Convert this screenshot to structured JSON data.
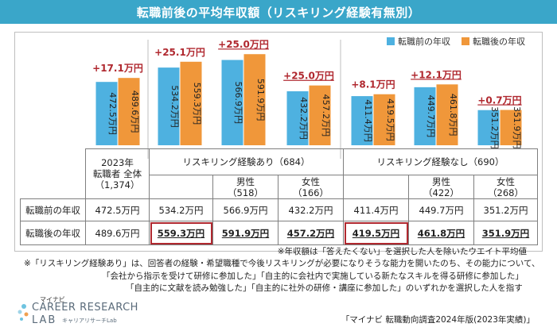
{
  "title": "転職前後の平均年収額（リスキリング経験有無別）",
  "colors": {
    "title_bg": "#3aa6c9",
    "before": "#4eb1e0",
    "after": "#f0973a",
    "diff": "#b0282f",
    "highlight": "#b0282f"
  },
  "chart_data": {
    "type": "bar",
    "title": "転職前後の平均年収額（リスキリング経験有無別）",
    "unit": "万円",
    "categories": [
      "2023年 転職者 全体",
      "リスキリング経験あり 全体",
      "リスキリング経験あり 男性",
      "リスキリング経験あり 女性",
      "リスキリング経験なし 全体",
      "リスキリング経験なし 男性",
      "リスキリング経験なし 女性"
    ],
    "series": [
      {
        "name": "転職前の年収",
        "color": "#4eb1e0",
        "values": [
          472.5,
          534.2,
          566.9,
          432.2,
          411.4,
          449.7,
          351.2
        ]
      },
      {
        "name": "転職後の年収",
        "color": "#f0973a",
        "values": [
          489.6,
          559.3,
          591.9,
          457.2,
          419.5,
          461.8,
          351.9
        ]
      }
    ],
    "bar_labels_before": [
      "472.5万円",
      "534.2万円",
      "566.9万円",
      "432.2万円",
      "411.4万円",
      "449.7万円",
      "351.2万円"
    ],
    "bar_labels_after": [
      "489.6万円",
      "559.3万円",
      "591.9万円",
      "457.2万円",
      "419.5万円",
      "461.8万円",
      "351.9万円"
    ],
    "diff_labels": [
      "+17.1万円",
      "+25.1万円",
      "+25.0万円",
      "+25.0万円",
      "+8.1万円",
      "+12.1万円",
      "+0.7万円"
    ],
    "diff_underlined": [
      false,
      false,
      true,
      true,
      false,
      true,
      true
    ],
    "ylim": [
      200,
      620
    ],
    "grid": false,
    "legend_position": "top-right"
  },
  "legend": {
    "before": "転職前の年収",
    "after": "転職後の年収"
  },
  "table": {
    "overall": {
      "line1": "2023年",
      "line2": "転職者 全体",
      "line3": "（1,374）"
    },
    "group_with": "リスキリング経験あり（684）",
    "group_without": "リスキリング経験なし（690）",
    "male_with": {
      "label": "男性",
      "n": "（518）"
    },
    "female_with": {
      "label": "女性",
      "n": "（166）"
    },
    "male_without": {
      "label": "男性",
      "n": "（422）"
    },
    "female_without": {
      "label": "女性",
      "n": "（268）"
    },
    "row_before": {
      "label": "転職前の年収",
      "values": [
        "472.5万円",
        "534.2万円",
        "566.9万円",
        "432.2万円",
        "411.4万円",
        "449.7万円",
        "351.2万円"
      ]
    },
    "row_after": {
      "label": "転職後の年収",
      "values": [
        "489.6万円",
        "559.3万円",
        "591.9万円",
        "457.2万円",
        "419.5万円",
        "461.8万円",
        "351.9万円"
      ]
    }
  },
  "notes": {
    "n1": "※年収額は「答えたくない」を選択した人を除いたウエイト平均値",
    "n2": "※「リスキリング経験あり」は、回答者の経験・希望職種で今後リスキリングが必要になりそうな能力を開いたのち、その能力について、",
    "n3": "「会社から指示を受けて研修に参加した」「自主的に会社内で実施している新たなスキルを得る研修に参加した」",
    "n4": "「自主的に文献を読み勉強した」「自主的に社外の研修・講座に参加した」のいずれかを選択した人を指す"
  },
  "logo": {
    "small": "マイナビ",
    "big": "CAREER RESEARCH",
    "lab": "LAB",
    "kana": "キャリアリサーチLab"
  },
  "source": "「マイナビ 転職動向調査2024年版(2023年実績)」"
}
